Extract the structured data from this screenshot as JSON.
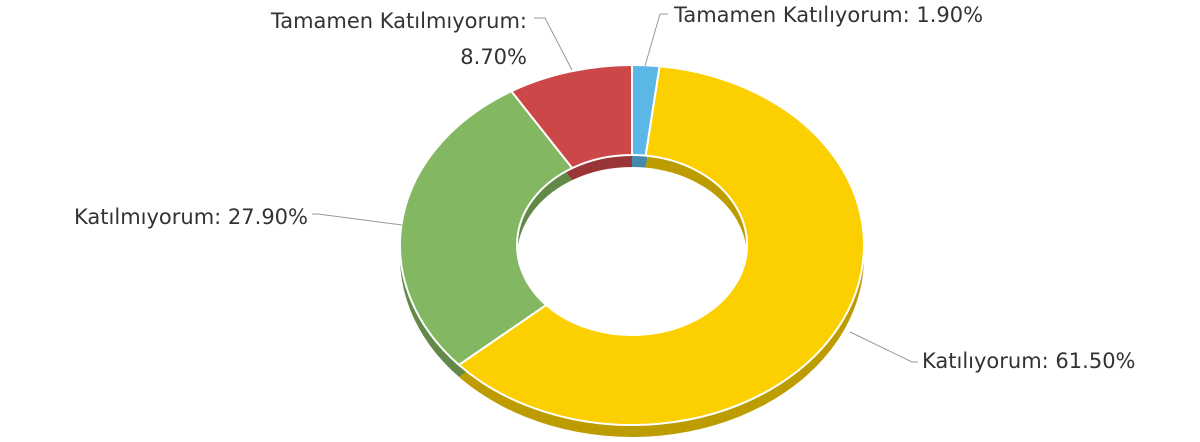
{
  "chart_data": {
    "type": "donut",
    "values": [
      1.9,
      61.5,
      27.9,
      8.7
    ],
    "value_labels": [
      [
        "Tamamen Katılıyorum: 1.90%"
      ],
      [
        "Katılıyorum: 61.50%"
      ],
      [
        "Katılmıyorum: 27.90%"
      ],
      [
        "Tamamen Katılmıyorum:",
        "8.70%"
      ]
    ],
    "colors": [
      "#5bb8e6",
      "#fcd000",
      "#84b761",
      "#cc4748"
    ]
  }
}
